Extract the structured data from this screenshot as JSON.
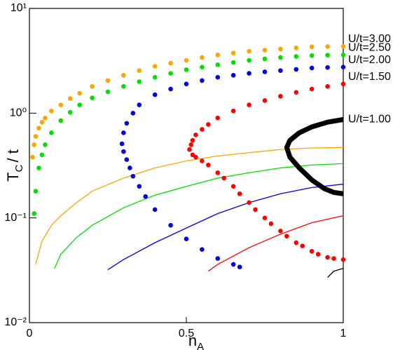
{
  "chart_data": {
    "type": "scatter",
    "log_y": true,
    "x_label": [
      "n",
      "A"
    ],
    "y_label": [
      "T",
      "C",
      "/ t"
    ],
    "xlim": [
      0,
      1
    ],
    "xticks": [
      0,
      0.5,
      1
    ],
    "ylim": [
      0.01,
      10
    ],
    "yticks": [
      {
        "value": 0.01,
        "label": "10⁻²"
      },
      {
        "value": 0.1,
        "label": "10⁻¹"
      },
      {
        "value": 1,
        "label": "10⁰"
      },
      {
        "value": 10,
        "label": "10¹"
      }
    ],
    "series": [
      {
        "name": "U/t=3.00",
        "color": "#ffa500",
        "mode": "markers",
        "x": [
          0.01,
          0.015,
          0.02,
          0.03,
          0.04,
          0.05,
          0.07,
          0.1,
          0.13,
          0.16,
          0.2,
          0.25,
          0.3,
          0.35,
          0.4,
          0.45,
          0.5,
          0.55,
          0.6,
          0.65,
          0.7,
          0.75,
          0.8,
          0.85,
          0.9,
          0.95,
          1.0
        ],
        "values": [
          0.38,
          0.5,
          0.6,
          0.72,
          0.82,
          0.9,
          1.05,
          1.2,
          1.38,
          1.55,
          1.8,
          2.05,
          2.3,
          2.55,
          2.8,
          3.0,
          3.2,
          3.4,
          3.6,
          3.75,
          3.9,
          4.0,
          4.1,
          4.2,
          4.3,
          4.33,
          4.35
        ]
      },
      {
        "name": "U/t=2.50",
        "color": "#00e000",
        "mode": "markers",
        "x": [
          0.015,
          0.02,
          0.03,
          0.04,
          0.05,
          0.07,
          0.1,
          0.13,
          0.16,
          0.2,
          0.25,
          0.3,
          0.35,
          0.4,
          0.45,
          0.5,
          0.55,
          0.6,
          0.65,
          0.7,
          0.75,
          0.8,
          0.85,
          0.9,
          0.95,
          1.0
        ],
        "values": [
          0.11,
          0.18,
          0.3,
          0.4,
          0.5,
          0.65,
          0.85,
          1.02,
          1.2,
          1.4,
          1.6,
          1.8,
          2.0,
          2.2,
          2.4,
          2.6,
          2.75,
          2.9,
          3.05,
          3.2,
          3.3,
          3.4,
          3.48,
          3.55,
          3.58,
          3.6
        ]
      },
      {
        "name": "U/t=2.00",
        "color": "#0000e0",
        "mode": "markers",
        "x": [
          0.67,
          0.65,
          0.6,
          0.55,
          0.5,
          0.45,
          0.4,
          0.37,
          0.35,
          0.33,
          0.32,
          0.31,
          0.3,
          0.295,
          0.3,
          0.31,
          0.33,
          0.35,
          0.4,
          0.45,
          0.5,
          0.55,
          0.6,
          0.65,
          0.7,
          0.75,
          0.8,
          0.85,
          0.9,
          0.95,
          1.0
        ],
        "values": [
          0.034,
          0.036,
          0.041,
          0.05,
          0.063,
          0.085,
          0.12,
          0.16,
          0.2,
          0.25,
          0.3,
          0.36,
          0.43,
          0.51,
          0.65,
          0.8,
          1.0,
          1.2,
          1.5,
          1.7,
          1.9,
          2.05,
          2.2,
          2.3,
          2.4,
          2.48,
          2.55,
          2.62,
          2.7,
          2.73,
          2.75
        ]
      },
      {
        "name": "U/t=1.50",
        "color": "#ff0000",
        "mode": "markers",
        "x": [
          1.0,
          0.97,
          0.95,
          0.92,
          0.9,
          0.87,
          0.85,
          0.82,
          0.8,
          0.77,
          0.75,
          0.72,
          0.7,
          0.67,
          0.65,
          0.62,
          0.6,
          0.57,
          0.55,
          0.53,
          0.52,
          0.51,
          0.515,
          0.52,
          0.53,
          0.55,
          0.57,
          0.6,
          0.65,
          0.7,
          0.75,
          0.8,
          0.85,
          0.9,
          0.95,
          1.0
        ],
        "values": [
          0.04,
          0.041,
          0.042,
          0.045,
          0.048,
          0.054,
          0.058,
          0.067,
          0.075,
          0.088,
          0.1,
          0.12,
          0.14,
          0.17,
          0.2,
          0.24,
          0.27,
          0.32,
          0.35,
          0.38,
          0.4,
          0.45,
          0.5,
          0.55,
          0.62,
          0.7,
          0.78,
          0.9,
          1.05,
          1.2,
          1.32,
          1.45,
          1.58,
          1.7,
          1.8,
          1.9
        ]
      },
      {
        "name": "U/t=1.00",
        "color": "#000000",
        "mode": "line",
        "x": [
          1.0,
          0.97,
          0.94,
          0.9,
          0.86,
          0.83,
          0.82,
          0.83,
          0.86,
          0.9,
          0.95,
          1.0
        ],
        "values": [
          0.17,
          0.175,
          0.19,
          0.23,
          0.3,
          0.38,
          0.47,
          0.55,
          0.65,
          0.74,
          0.82,
          0.87
        ]
      }
    ],
    "lines": [
      {
        "color": "#ffa500",
        "x": [
          0.02,
          0.04,
          0.07,
          0.1,
          0.15,
          0.2,
          0.3,
          0.4,
          0.5,
          0.6,
          0.7,
          0.8,
          0.9,
          1.0
        ],
        "values": [
          0.036,
          0.06,
          0.085,
          0.105,
          0.14,
          0.18,
          0.24,
          0.3,
          0.35,
          0.39,
          0.42,
          0.45,
          0.465,
          0.47
        ]
      },
      {
        "color": "#00e000",
        "x": [
          0.08,
          0.1,
          0.15,
          0.2,
          0.3,
          0.4,
          0.5,
          0.6,
          0.7,
          0.8,
          0.9,
          1.0
        ],
        "values": [
          0.033,
          0.045,
          0.065,
          0.085,
          0.125,
          0.165,
          0.2,
          0.24,
          0.27,
          0.3,
          0.32,
          0.33
        ]
      },
      {
        "color": "#0000e0",
        "x": [
          0.25,
          0.3,
          0.4,
          0.5,
          0.6,
          0.7,
          0.8,
          0.9,
          1.0
        ],
        "values": [
          0.032,
          0.04,
          0.058,
          0.08,
          0.11,
          0.14,
          0.17,
          0.195,
          0.21
        ]
      },
      {
        "color": "#ff0000",
        "x": [
          0.57,
          0.6,
          0.7,
          0.8,
          0.9,
          1.0
        ],
        "values": [
          0.031,
          0.036,
          0.052,
          0.07,
          0.09,
          0.105
        ]
      },
      {
        "color": "#000000",
        "x": [
          0.95,
          0.97,
          1.0
        ],
        "values": [
          0.027,
          0.031,
          0.033
        ]
      }
    ]
  }
}
